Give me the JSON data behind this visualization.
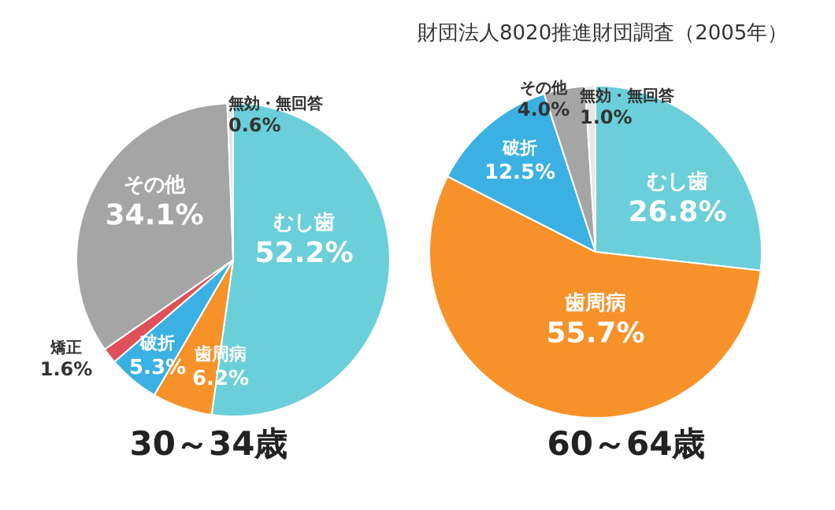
{
  "chart_data": [
    {
      "type": "pie",
      "title": "30～34歳",
      "categories": [
        "むし歯",
        "歯周病",
        "破折",
        "矯正",
        "その他",
        "無効・無回答"
      ],
      "values": [
        52.2,
        6.2,
        5.3,
        1.6,
        34.1,
        0.6
      ],
      "colors": [
        "#6acfd8",
        "#f7922a",
        "#3bb1e3",
        "#e0505a",
        "#a5a5a5",
        "#e6e6e6"
      ],
      "value_labels": [
        "52.2%",
        "6.2%",
        "5.3%",
        "1.6%",
        "34.1%",
        "0.6%"
      ],
      "legend": false
    },
    {
      "type": "pie",
      "title": "60～64歳",
      "categories": [
        "むし歯",
        "歯周病",
        "破折",
        "その他",
        "無効・無回答"
      ],
      "values": [
        26.8,
        55.7,
        12.5,
        4.0,
        1.0
      ],
      "colors": [
        "#6acfd8",
        "#f7922a",
        "#3bb1e3",
        "#a5a5a5",
        "#e6e6e6"
      ],
      "value_labels": [
        "26.8%",
        "55.7%",
        "12.5%",
        "4.0%",
        "1.0%"
      ],
      "legend": false,
      "annotations": [
        "財団法人8020推進財団調査（2005年）"
      ]
    }
  ]
}
